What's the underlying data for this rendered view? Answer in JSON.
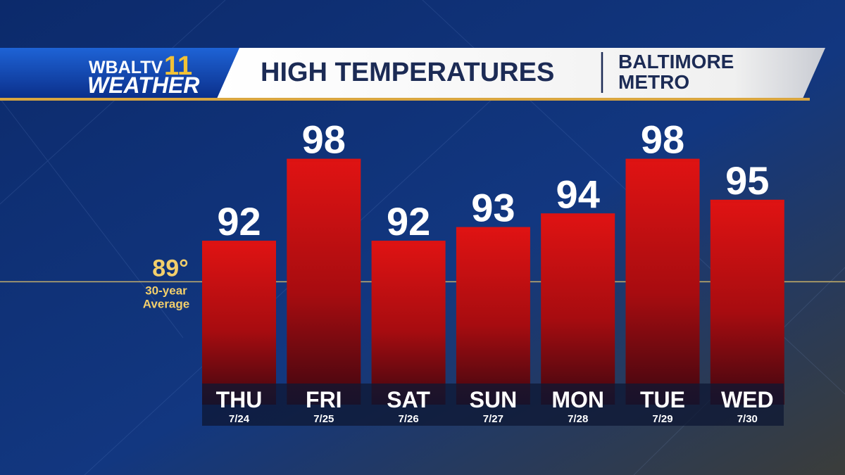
{
  "branding": {
    "station": "WBALTV",
    "channel": "11",
    "segment": "WEATHER"
  },
  "chart_data": {
    "type": "bar",
    "title": "HIGH TEMPERATURES",
    "subtitle_lines": [
      "BALTIMORE",
      "METRO"
    ],
    "categories": [
      "THU",
      "FRI",
      "SAT",
      "SUN",
      "MON",
      "TUE",
      "WED"
    ],
    "dates": [
      "7/24",
      "7/25",
      "7/26",
      "7/27",
      "7/28",
      "7/29",
      "7/30"
    ],
    "values": [
      92,
      98,
      92,
      93,
      94,
      98,
      95
    ],
    "color": "#d81414",
    "ylim": [
      80,
      102
    ],
    "average": {
      "value": 89,
      "label": "89°",
      "note_lines": [
        "30-year",
        "Average"
      ],
      "color": "#f2cf6b"
    }
  }
}
